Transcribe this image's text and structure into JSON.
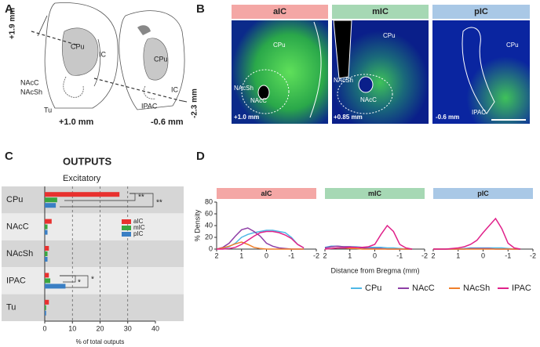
{
  "panel_labels": [
    "A",
    "B",
    "C",
    "D"
  ],
  "panel_a": {
    "left": {
      "labels": [
        "CPu",
        "IC",
        "NAcC",
        "NAcSh",
        "Tu"
      ],
      "level": "+1.0 mm"
    },
    "right": {
      "labels": [
        "CPu",
        "IC",
        "IPAC"
      ],
      "level": "-0.6 mm"
    },
    "scale_top": "+1.9 mm",
    "scale_bottom": "-2.3 mm"
  },
  "panel_b": [
    {
      "title": "aIC",
      "color": "#f4a7a5",
      "labels": [
        "CPu",
        "NAcSh",
        "NAcC"
      ],
      "level": "+1.0 mm"
    },
    {
      "title": "mIC",
      "color": "#a6d8b4",
      "labels": [
        "CPu",
        "NAcSh",
        "NAcC"
      ],
      "level": "+0.85 mm"
    },
    {
      "title": "pIC",
      "color": "#a9c8e6",
      "labels": [
        "CPu",
        "IPAC"
      ],
      "level": "-0.6 mm"
    }
  ],
  "chart_data": [
    {
      "type": "hbar",
      "title": "OUTPUTS",
      "subtitle": "Excitatory",
      "categories": [
        "CPu",
        "NAcC",
        "NAcSh",
        "IPAC",
        "Tu"
      ],
      "series": [
        {
          "name": "aIC",
          "color": "#e8312f",
          "values": [
            27,
            2.5,
            1.5,
            1.5,
            1.5
          ]
        },
        {
          "name": "mIC",
          "color": "#3aa640",
          "values": [
            4.5,
            1,
            1,
            2,
            0.5
          ]
        },
        {
          "name": "pIC",
          "color": "#3a7fc4",
          "values": [
            4,
            1,
            1,
            7.5,
            0.5
          ]
        }
      ],
      "xlim": [
        0,
        40
      ],
      "xticks": [
        0,
        10,
        20,
        30,
        40
      ],
      "xlabel": "% of total outputs",
      "grid": true,
      "annotations": [
        "**",
        "**",
        "*",
        "*"
      ]
    },
    {
      "type": "line",
      "title": "aIC",
      "header_color": "#f4a7a5",
      "x": [
        2,
        1.75,
        1.5,
        1.25,
        1,
        0.75,
        0.5,
        0.25,
        0,
        -0.25,
        -0.5,
        -0.75,
        -1,
        -1.25,
        -1.5
      ],
      "series": [
        {
          "values": [
            0,
            1,
            4,
            10,
            20,
            25,
            28,
            30,
            32,
            32,
            30,
            28,
            20,
            8,
            2
          ]
        },
        {
          "values": [
            0,
            3,
            10,
            22,
            33,
            36,
            30,
            22,
            10,
            5,
            2,
            1,
            0,
            0,
            0
          ]
        },
        {
          "values": [
            0,
            2,
            5,
            9,
            12,
            8,
            3,
            1,
            0,
            0,
            0,
            0,
            0,
            0,
            0
          ]
        },
        {
          "values": [
            0,
            0,
            1,
            3,
            8,
            15,
            22,
            28,
            30,
            30,
            28,
            24,
            18,
            8,
            2
          ]
        }
      ],
      "xlim": [
        2,
        -2
      ],
      "xticks": [
        2,
        1,
        0,
        -1,
        -2
      ],
      "ylim": [
        0,
        80
      ],
      "yticks": [
        0,
        20,
        40,
        60,
        80
      ],
      "ylabel": "% Density"
    },
    {
      "type": "line",
      "title": "mIC",
      "header_color": "#a6d8b4",
      "x": [
        2,
        1.75,
        1.5,
        1.25,
        1,
        0.75,
        0.5,
        0.25,
        0,
        -0.25,
        -0.5,
        -0.75,
        -1,
        -1.25,
        -1.5
      ],
      "series": [
        {
          "values": [
            3,
            5,
            5,
            4,
            4,
            4,
            3,
            3,
            3,
            3,
            2,
            2,
            1,
            0,
            0
          ]
        },
        {
          "values": [
            2,
            4,
            5,
            4,
            4,
            3,
            2,
            1,
            1,
            1,
            0,
            0,
            0,
            0,
            0
          ]
        },
        {
          "values": [
            0,
            1,
            2,
            2,
            1,
            1,
            0,
            0,
            0,
            0,
            0,
            0,
            0,
            0,
            0
          ]
        },
        {
          "values": [
            0,
            1,
            2,
            2,
            3,
            3,
            3,
            4,
            8,
            25,
            40,
            30,
            8,
            2,
            0
          ]
        }
      ],
      "xlim": [
        2,
        -2
      ],
      "xticks": [
        2,
        1,
        0,
        -1,
        -2
      ],
      "ylim": [
        0,
        80
      ]
    },
    {
      "type": "line",
      "title": "pIC",
      "header_color": "#a9c8e6",
      "x": [
        2,
        1.75,
        1.5,
        1.25,
        1,
        0.75,
        0.5,
        0.25,
        0,
        -0.25,
        -0.5,
        -0.75,
        -1,
        -1.25,
        -1.5
      ],
      "series": [
        {
          "values": [
            0,
            0,
            0,
            0,
            0,
            1,
            2,
            2,
            2,
            2,
            2,
            2,
            1,
            0,
            0
          ]
        },
        {
          "values": [
            0,
            0,
            0,
            0,
            0,
            0,
            1,
            1,
            1,
            1,
            0,
            0,
            0,
            0,
            0
          ]
        },
        {
          "values": [
            0,
            0,
            0,
            0,
            0,
            0,
            0,
            0,
            0,
            0,
            0,
            0,
            0,
            0,
            0
          ]
        },
        {
          "values": [
            0,
            0,
            0,
            1,
            2,
            4,
            8,
            15,
            28,
            40,
            52,
            35,
            10,
            2,
            0
          ]
        }
      ],
      "xlim": [
        2,
        -2
      ],
      "xticks": [
        2,
        1,
        0,
        -1,
        -2
      ],
      "ylim": [
        0,
        80
      ]
    }
  ],
  "panel_d": {
    "xlabel": "Distance from Bregma (mm)",
    "legend": [
      {
        "name": "CPu",
        "color": "#4fb8e6"
      },
      {
        "name": "NAcC",
        "color": "#8e3fa6"
      },
      {
        "name": "NAcSh",
        "color": "#f07f2a"
      },
      {
        "name": "IPAC",
        "color": "#e0218a"
      }
    ]
  }
}
